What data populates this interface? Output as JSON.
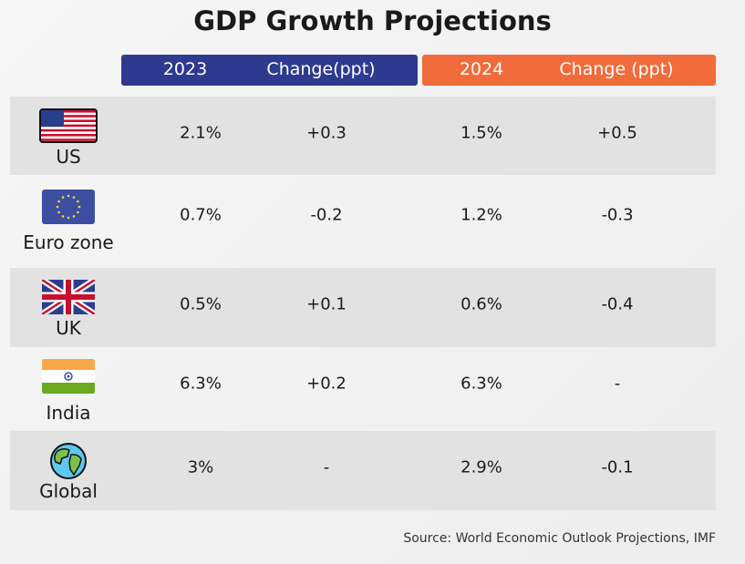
{
  "title": "GDP Growth Projections",
  "colors": {
    "header_2023": "#2e3a8f",
    "header_2024": "#f26b3a",
    "row_shade": "#e2e2e2"
  },
  "headers": [
    "2023",
    "Change(ppt)",
    "2024",
    "Change (ppt)"
  ],
  "chart_data": {
    "type": "table",
    "title": "GDP Growth Projections",
    "columns": [
      "2023",
      "Change(ppt)",
      "2024",
      "Change (ppt)"
    ],
    "rows": [
      {
        "name": "US",
        "icon": "us-flag-icon",
        "values": [
          "2.1%",
          "+0.3",
          "1.5%",
          "+0.5"
        ]
      },
      {
        "name": "Euro zone",
        "icon": "eu-flag-icon",
        "values": [
          "0.7%",
          "-0.2",
          "1.2%",
          "-0.3"
        ]
      },
      {
        "name": "UK",
        "icon": "uk-flag-icon",
        "values": [
          "0.5%",
          "+0.1",
          "0.6%",
          "-0.4"
        ]
      },
      {
        "name": "India",
        "icon": "india-flag-icon",
        "values": [
          "6.3%",
          "+0.2",
          "6.3%",
          "-"
        ]
      },
      {
        "name": "Global",
        "icon": "globe-icon",
        "values": [
          "3%",
          "-",
          "2.9%",
          "-0.1"
        ]
      }
    ]
  },
  "source": "Source: World Economic Outlook Projections, IMF"
}
